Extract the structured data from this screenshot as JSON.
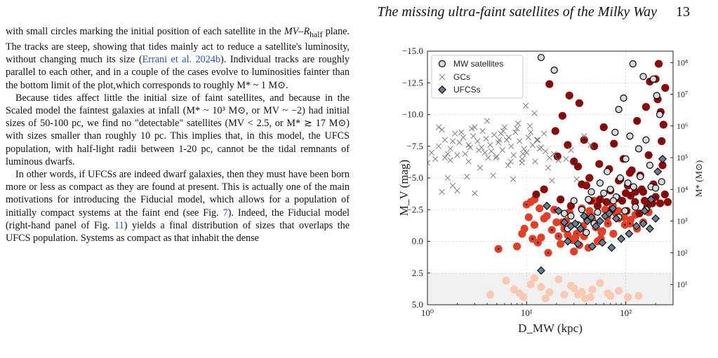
{
  "header": {
    "title": "The missing ultra-faint satellites of the Milky Way",
    "page_number": "13"
  },
  "body": {
    "p1_a": "with small circles marking the initial position of each satellite in the ",
    "p1_math": "M",
    "p1_b": "V–R",
    "p1_c": "half",
    "p1_d": " plane. The tracks are steep, showing that tides mainly act to reduce a satellite's luminosity, without changing much its size (",
    "p1_cite": "Errani et al. 2024b",
    "p1_e": "). Individual tracks are roughly parallel to each other, and in a couple of the cases evolve to luminosities fainter than the bottom limit of the plot,which corresponds to roughly M* ~ 1 M⊙.",
    "p2": "Because tides affect little the initial size of faint satellites, and because in the Scaled model the faintest galaxies at infall (M* ~ 10³ M⊙, or MV ~ −2) had initial sizes of 50-100 pc, we find no \"detectable\" satellites (MV < 2.5, or M* ≳ 17 M⊙) with sizes smaller than roughly 10 pc. This implies that, in this model, the UFCS population, with half-light radii between 1-20 pc, cannot be the tidal remnants of luminous dwarfs.",
    "p3_a": "In other words, if UFCSs are indeed dwarf galaxies, then they must have been born more or less as compact as they are found at present. This is actually one of the main motivations for introducing the Fiducial model, which allows for a population of initially compact systems at the faint end (see Fig. ",
    "p3_ref1": "7",
    "p3_b": "). Indeed, the Fiducial model (right-hand panel of Fig. ",
    "p3_ref2": "11",
    "p3_c": ") yields a final distribution of sizes that overlaps the UFCS population. Systems as compact as that inhabit the dense"
  },
  "chart_data": {
    "type": "scatter",
    "xlabel": "D_MW (kpc)",
    "ylabel": "M_V (mag)",
    "y2label": "M* (M⊙)",
    "xscale": "log",
    "xlim": [
      1,
      300
    ],
    "ylim": [
      5.0,
      -15.0
    ],
    "x_ticks": [
      "10⁰",
      "10¹",
      "10²"
    ],
    "y_ticks": [
      "−15.0",
      "−12.5",
      "−10.0",
      "−7.5",
      "−5.0",
      "−2.5",
      "0.0",
      "2.5",
      "5.0"
    ],
    "y2_ticks": [
      "10⁸",
      "10⁷",
      "10⁶",
      "10⁵",
      "10⁴",
      "10³",
      "10²",
      "10¹"
    ],
    "grid": true,
    "legend": {
      "position": "top-left",
      "entries": [
        "MW satellites",
        "GCs",
        "UFCSs"
      ]
    },
    "shaded_band": {
      "ymin": 2.5,
      "ymax": 5.0,
      "color": "#f0f0f0"
    },
    "colors": {
      "mw_sat_fill": "#d9d9d9",
      "gc": "#7f7f7f",
      "ufcs": "#6b7d8f",
      "dark_red": "#8b0a0a",
      "red": "#e0402a",
      "pale": "#f9c9b4"
    },
    "series": [
      {
        "name": "MW satellites",
        "marker": "circle-outline",
        "x": [
          14,
          19,
          118,
          95,
          150,
          190,
          205,
          85,
          220,
          110,
          160,
          78,
          135,
          100,
          175,
          65,
          88,
          55,
          105,
          120,
          70,
          45,
          60,
          80,
          42,
          75,
          140,
          180,
          230,
          30,
          98,
          125,
          160,
          85,
          200,
          52,
          36,
          26,
          28,
          24,
          40,
          33,
          48
        ],
        "y": [
          -14.5,
          -13.5,
          -14.0,
          -11.3,
          -13.0,
          -12.8,
          -11.5,
          -10.4,
          -10.0,
          -8.3,
          -8.0,
          -8.6,
          -7.3,
          -6.5,
          -6.0,
          -5.5,
          -5.0,
          -4.6,
          -4.6,
          -4.3,
          -4.1,
          -3.9,
          -3.8,
          -3.5,
          -3.3,
          -3.2,
          -5.1,
          -4.3,
          -4.7,
          -3.2,
          -2.4,
          -2.7,
          -2.5,
          -1.9,
          -4.2,
          -2.3,
          -2.5,
          -1.0,
          -2.0,
          -2.2,
          -0.7,
          -1.3,
          -1.4
        ]
      },
      {
        "name": "GCs",
        "marker": "x",
        "x": [
          1.1,
          1.3,
          1.5,
          1.7,
          1.9,
          2.1,
          2.3,
          2.6,
          2.9,
          3.2,
          3.5,
          3.9,
          4.3,
          4.7,
          5.2,
          5.7,
          6.3,
          7.0,
          7.7,
          8.5,
          9.4,
          10.4,
          11.5,
          12.7,
          14.0,
          15.5,
          17.0,
          18.8,
          21.0,
          1.2,
          1.4,
          1.6,
          1.8,
          2.0,
          2.4,
          2.8,
          3.3,
          3.8,
          4.4,
          5.0,
          5.8,
          6.6,
          7.4,
          8.2,
          9.0,
          10.0,
          11.0,
          12.2,
          13.5,
          15.0,
          1.3,
          1.5,
          1.7,
          2.2,
          2.7,
          3.0,
          3.6,
          4.1,
          4.9,
          5.5,
          6.0,
          6.9,
          8.0,
          9.2,
          10.8,
          13.0,
          1.0,
          1.6,
          2.5,
          3.4,
          4.6,
          6.5,
          9.8,
          1.4,
          2.0,
          3.0,
          7.3,
          4.0,
          5.3,
          2.6,
          1.8,
          16.5,
          18.0,
          12.0,
          25.0,
          28.0,
          32.0,
          38.0,
          44.0,
          9.0
        ],
        "y": [
          -7.0,
          -7.5,
          -8.0,
          -7.3,
          -8.5,
          -7.8,
          -8.2,
          -7.6,
          -8.3,
          -7.9,
          -7.4,
          -8.1,
          -7.6,
          -8.4,
          -7.8,
          -7.2,
          -8.0,
          -7.5,
          -8.6,
          -7.9,
          -7.3,
          -8.2,
          -7.6,
          -8.0,
          -7.4,
          -7.1,
          -6.6,
          -6.9,
          -6.4,
          -6.5,
          -8.8,
          -6.9,
          -7.9,
          -6.8,
          -6.9,
          -8.9,
          -7.2,
          -7.0,
          -7.1,
          -6.7,
          -8.7,
          -8.2,
          -6.8,
          -9.3,
          -6.5,
          -7.0,
          -8.6,
          -6.3,
          -7.3,
          -8.5,
          -9.0,
          -6.6,
          -6.4,
          -8.6,
          -7.4,
          -9.0,
          -8.7,
          -6.6,
          -6.6,
          -8.5,
          -9.0,
          -6.3,
          -8.9,
          -6.9,
          -9.1,
          -8.0,
          -6.2,
          -5.0,
          -5.1,
          -5.8,
          -5.2,
          -6.0,
          -10.7,
          -3.9,
          -4.0,
          -3.8,
          -4.9,
          -9.5,
          -8.0,
          -6.3,
          -4.4,
          -5.8,
          -4.8,
          -10.1,
          -6.5,
          -7.2,
          -4.9,
          -8.3,
          -7.6,
          -6.2
        ]
      },
      {
        "name": "UFCSs",
        "marker": "diamond",
        "x": [
          16,
          21,
          24,
          28,
          31,
          35,
          38,
          41,
          45,
          50,
          55,
          62,
          68,
          74,
          80,
          26,
          33,
          46,
          58,
          72,
          90,
          108,
          128,
          150,
          175,
          200,
          235,
          210,
          180,
          155,
          14
        ],
        "y": [
          -2.8,
          -2.4,
          -1.5,
          -1.2,
          -1.4,
          -1.0,
          -2.0,
          -1.6,
          -1.9,
          -1.2,
          -1.6,
          -2.0,
          -2.2,
          -2.6,
          -1.8,
          0.0,
          0.2,
          0.4,
          0.1,
          0.5,
          -0.2,
          -0.6,
          -1.2,
          -1.4,
          -1.0,
          -1.8,
          -6.5,
          -5.5,
          -3.3,
          -2.4,
          2.3
        ]
      },
      {
        "x": [
          17,
          19.5,
          23,
          27,
          30,
          34,
          38,
          43,
          48,
          54,
          60,
          68,
          76,
          85,
          95,
          105,
          115,
          125,
          140,
          155,
          170,
          190,
          210,
          235,
          12.5,
          15,
          22,
          28,
          36,
          44,
          52,
          64,
          72,
          82,
          92,
          102,
          112,
          124,
          137,
          150,
          165,
          182,
          200,
          222,
          248,
          265,
          20.5,
          26,
          33,
          40,
          55,
          70,
          88,
          110,
          145,
          185,
          230,
          240,
          225,
          250,
          200,
          215,
          175,
          160,
          130,
          100
        ],
        "y": [
          -12.4,
          -8.7,
          -9.9,
          -11.5,
          -6.3,
          -10.9,
          -8.0,
          -5.0,
          -7.5,
          -6.1,
          -9.0,
          -5.7,
          -7.7,
          -4.8,
          -6.5,
          -4.4,
          -5.6,
          -3.9,
          -5.2,
          -3.2,
          -6.8,
          -4.5,
          -11.2,
          -6.0,
          -3.7,
          -4.1,
          -3.3,
          -2.8,
          -4.5,
          -3.2,
          -2.8,
          -3.1,
          -2.5,
          -3.4,
          -3.2,
          -2.4,
          -3.6,
          -3.1,
          -2.2,
          -3.9,
          -2.8,
          -3.3,
          -3.5,
          -3.0,
          -3.7,
          -3.1,
          -6.7,
          -7.6,
          -5.9,
          -4.4,
          -3.3,
          -4.0,
          -4.9,
          -5.4,
          -4.1,
          -3.0,
          -7.9,
          -9.2,
          -10.2,
          -12.1,
          -12.8,
          -14.0,
          -12.6,
          -10.6,
          -9.5,
          -3.8
        ]
      },
      {
        "x": [
          5.2,
          8,
          9,
          10,
          11,
          12,
          13,
          14,
          15,
          18,
          20,
          22,
          24,
          26,
          30,
          34,
          38,
          42,
          46,
          52,
          58,
          66,
          75,
          85,
          98,
          112,
          130,
          150,
          170,
          9.5,
          11.5,
          13.5,
          16,
          19,
          23,
          27,
          32,
          37,
          43,
          50,
          57,
          65,
          74,
          84,
          96,
          110,
          125,
          10.5,
          16.5,
          25,
          31,
          40,
          56,
          12,
          21,
          29,
          35,
          48,
          62,
          80,
          36,
          45
        ],
        "y": [
          0.6,
          0.4,
          -0.6,
          -2.9,
          -3.1,
          -1.3,
          0.1,
          -0.3,
          -1.8,
          -0.9,
          -1.5,
          0.2,
          -1.0,
          -0.5,
          0.8,
          0.3,
          -0.4,
          0.5,
          -1.7,
          0.0,
          -0.8,
          -1.4,
          -0.6,
          -1.8,
          -1.3,
          -1.7,
          -1.0,
          -1.5,
          -2.3,
          -1.0,
          -0.2,
          -2.6,
          -2.0,
          -2.5,
          -1.5,
          -2.3,
          -0.6,
          -1.2,
          -2.4,
          -1.1,
          -0.7,
          -1.9,
          -2.8,
          -2.4,
          -1.9,
          -1.4,
          -2.1,
          -1.9,
          0.9,
          -1.6,
          -0.3,
          -1.9,
          -0.2,
          -3.3,
          -0.4,
          -0.1,
          -1.0,
          -3.2,
          -2.5,
          -2.2,
          -2.6,
          -2.0
        ]
      },
      {
        "x": [
          4.3,
          6.2,
          7.5,
          9.3,
          12,
          14,
          17,
          21,
          28,
          33,
          39,
          46,
          55,
          66,
          85,
          105,
          135,
          8.5,
          11,
          15.5,
          24,
          30,
          36,
          44,
          70
        ],
        "y": [
          4.2,
          3.1,
          3.8,
          4.4,
          2.9,
          3.6,
          4.0,
          3.0,
          3.5,
          4.2,
          4.5,
          3.8,
          3.3,
          4.1,
          3.9,
          4.4,
          4.3,
          4.1,
          3.4,
          4.5,
          4.2,
          3.7,
          4.0,
          4.4,
          4.3
        ]
      }
    ]
  }
}
